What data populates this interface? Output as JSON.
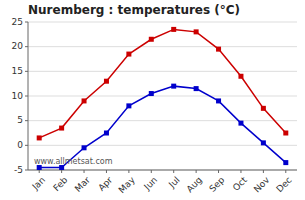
{
  "chart_data": {
    "type": "line",
    "title": "Nuremberg : temperatures (°C)",
    "categories": [
      "Jan",
      "Feb",
      "Mar",
      "Apr",
      "May",
      "Jun",
      "Jul",
      "Aug",
      "Sep",
      "Oct",
      "Nov",
      "Dec"
    ],
    "series": [
      {
        "color": "#cc0000",
        "values": [
          1.5,
          3.5,
          9.0,
          13.0,
          18.5,
          21.5,
          23.5,
          23.0,
          19.5,
          14.0,
          7.5,
          2.5
        ]
      },
      {
        "color": "#0000cc",
        "values": [
          -4.5,
          -4.5,
          -0.5,
          2.5,
          8.0,
          10.5,
          12.0,
          11.5,
          9.0,
          4.5,
          0.5,
          -3.5
        ]
      }
    ],
    "ylim": [
      -5,
      25
    ],
    "yticks": [
      -5,
      0,
      5,
      10,
      15,
      20,
      25
    ],
    "grid": true,
    "marker": "square",
    "line_style": "solid",
    "annotations": [
      "www.allmetsat.com"
    ]
  }
}
